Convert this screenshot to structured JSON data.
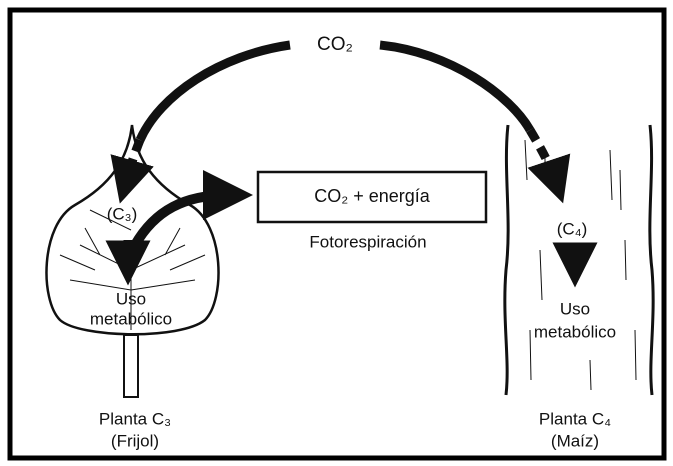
{
  "top": {
    "label": "CO₂"
  },
  "c3_plant": {
    "pathway": "(C₃)",
    "use_lines": [
      "Uso",
      "metabólico"
    ],
    "name": "Planta C₃",
    "common_name": "(Frijol)"
  },
  "photorespiration": {
    "box": "CO₂ + energía",
    "label": "Fotorespiración"
  },
  "c4_plant": {
    "pathway": "(C₄)",
    "use_lines": [
      "Uso",
      "metabólico"
    ],
    "name": "Planta C₄",
    "common_name": "(Maíz)"
  }
}
